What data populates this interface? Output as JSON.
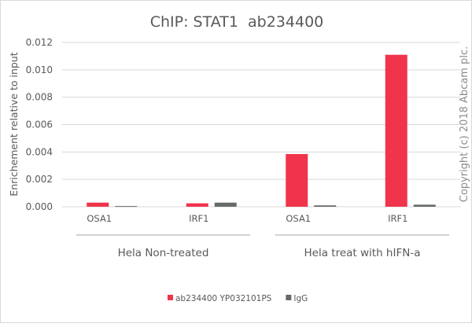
{
  "chart_data": {
    "type": "bar",
    "title": "ChIP: STAT1  ab234400",
    "xlabel": "",
    "ylabel": "Enrichement relative to input",
    "ylim": [
      0,
      0.012
    ],
    "yticks": [
      "0.000",
      "0.002",
      "0.004",
      "0.006",
      "0.008",
      "0.010",
      "0.012"
    ],
    "grid": true,
    "legend_position": "bottom",
    "categories": [
      "OSA1",
      "IRF1",
      "OSA1",
      "IRF1"
    ],
    "groups": [
      {
        "label": "Hela Non-treated",
        "categories": [
          0,
          1
        ]
      },
      {
        "label": "Hela treat with hIFN-a",
        "categories": [
          2,
          3
        ]
      }
    ],
    "series": [
      {
        "name": "ab234400 YP032101PS",
        "color": "#f0344c",
        "values": [
          0.0003,
          0.00025,
          0.00385,
          0.0111
        ]
      },
      {
        "name": "IgG",
        "color": "#666a6a",
        "values": [
          5e-05,
          0.0003,
          0.0001,
          0.00015
        ]
      }
    ],
    "watermark": "Copyright (c) 2018 Abcam plc."
  }
}
